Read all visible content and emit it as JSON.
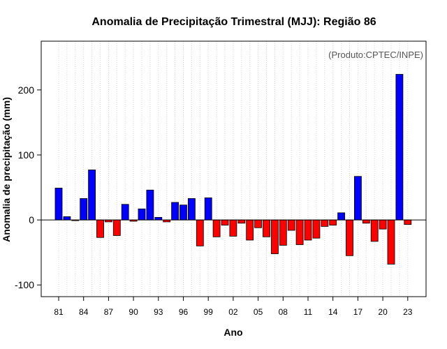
{
  "chart_data": {
    "type": "bar",
    "title": "Anomalia de Precipitação Trimestral (MJJ): Região 86",
    "xlabel": "Ano",
    "ylabel": "Anomalia de precipitação (mm)",
    "annotation": "(Produto:CPTEC/INPE)",
    "ylim": [
      -118,
      275
    ],
    "yticks": [
      -100,
      0,
      100,
      200
    ],
    "ytick_labels": [
      "-100",
      "0",
      "100",
      "200"
    ],
    "grid": "vertical dotted",
    "categories": [
      "1981",
      "1982",
      "1983",
      "1984",
      "1985",
      "1986",
      "1987",
      "1988",
      "1989",
      "1990",
      "1991",
      "1992",
      "1993",
      "1994",
      "1995",
      "1996",
      "1997",
      "1998",
      "1999",
      "2000",
      "2001",
      "2002",
      "2003",
      "2004",
      "2005",
      "2006",
      "2007",
      "2008",
      "2009",
      "2010",
      "2011",
      "2012",
      "2013",
      "2014",
      "2015",
      "2016",
      "2017",
      "2018",
      "2019",
      "2020",
      "2021",
      "2022",
      "2023"
    ],
    "values": [
      49,
      5,
      -1,
      33,
      77,
      -27,
      -3,
      -24,
      24,
      -2,
      17,
      46,
      4,
      -3,
      27,
      23,
      33,
      -40,
      34,
      -26,
      -8,
      -25,
      -5,
      -31,
      -12,
      -26,
      -52,
      -39,
      -16,
      -38,
      -31,
      -28,
      -10,
      -8,
      11,
      -55,
      67,
      -5,
      -33,
      -14,
      -68,
      224,
      -7
    ],
    "xtick_labels": [
      "81",
      "84",
      "87",
      "90",
      "93",
      "96",
      "99",
      "02",
      "05",
      "08",
      "11",
      "14",
      "17",
      "20",
      "23"
    ],
    "colors": {
      "positive": "#0000ff",
      "negative": "#ff0000",
      "stroke": "#000000",
      "grid": "#d3d3d3"
    }
  }
}
